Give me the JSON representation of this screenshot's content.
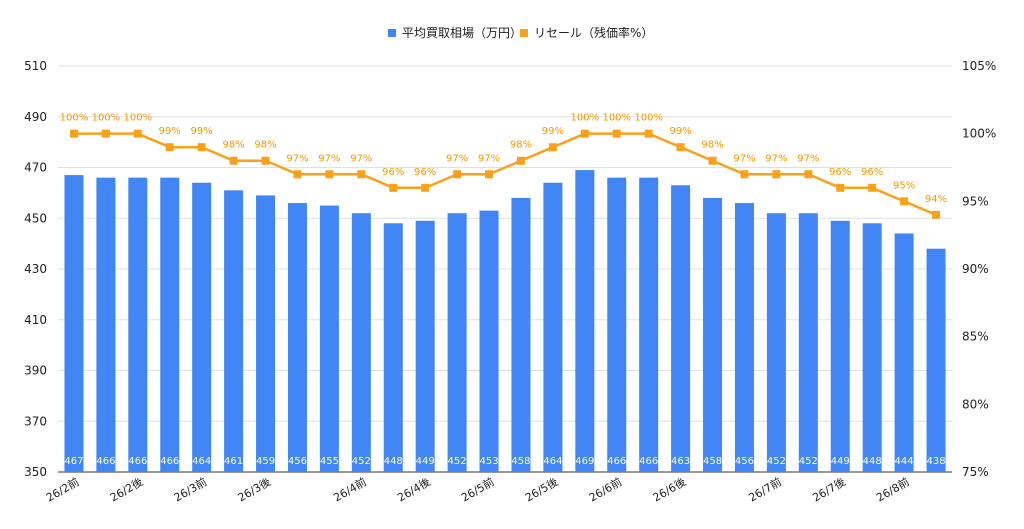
{
  "chart_data": {
    "type": "bar",
    "title": "",
    "legend": {
      "position": "top-center",
      "items": [
        {
          "label": "平均買取相場（万円）",
          "color": "#4285f4",
          "marker": "square"
        },
        {
          "label": "リセール（残価率%）",
          "color": "#f9a11b",
          "marker": "square"
        }
      ]
    },
    "categories": [
      "26/2前",
      "",
      "26/2後",
      "",
      "26/3前",
      "",
      "26/3後",
      "",
      "",
      "26/4前",
      "",
      "26/4後",
      "",
      "26/5前",
      "",
      "26/5後",
      "",
      "26/6前",
      "",
      "26/6後",
      "",
      "",
      "26/7前",
      "",
      "26/7後",
      "",
      "26/8前",
      ""
    ],
    "series": [
      {
        "name": "平均買取相場（万円）",
        "type": "bar",
        "axis": "left",
        "color": "#4285f4",
        "values": [
          467,
          466,
          466,
          466,
          464,
          461,
          459,
          456,
          455,
          452,
          448,
          449,
          452,
          453,
          458,
          464,
          469,
          466,
          466,
          463,
          458,
          456,
          452,
          452,
          449,
          448,
          444,
          438
        ],
        "labels": [
          "467",
          "466",
          "466",
          "466",
          "464",
          "461",
          "459",
          "456",
          "455",
          "452",
          "448",
          "449",
          "452",
          "453",
          "458",
          "464",
          "469",
          "466",
          "466",
          "463",
          "458",
          "456",
          "452",
          "452",
          "449",
          "448",
          "444",
          "438"
        ]
      },
      {
        "name": "リセール（残価率%）",
        "type": "line",
        "axis": "right",
        "color": "#f9a11b",
        "values": [
          100,
          100,
          100,
          99,
          99,
          98,
          98,
          97,
          97,
          97,
          96,
          96,
          97,
          97,
          98,
          99,
          100,
          100,
          100,
          99,
          98,
          97,
          97,
          97,
          96,
          96,
          95,
          94
        ],
        "labels": [
          "100%",
          "100%",
          "100%",
          "99%",
          "99%",
          "98%",
          "98%",
          "97%",
          "97%",
          "97%",
          "96%",
          "96%",
          "97%",
          "97%",
          "98%",
          "99%",
          "100%",
          "100%",
          "100%",
          "99%",
          "98%",
          "97%",
          "97%",
          "97%",
          "96%",
          "96%",
          "95%",
          "94%"
        ]
      }
    ],
    "y_left": {
      "min": 350,
      "max": 510,
      "ticks": [
        350,
        370,
        390,
        410,
        430,
        450,
        470,
        490,
        510
      ],
      "tick_labels": [
        "350",
        "370",
        "390",
        "410",
        "430",
        "450",
        "470",
        "490",
        "510"
      ]
    },
    "y_right": {
      "min": 75,
      "max": 105,
      "ticks": [
        75,
        80,
        85,
        90,
        95,
        100,
        105
      ],
      "tick_labels": [
        "75%",
        "80%",
        "85%",
        "90%",
        "95%",
        "100%",
        "105%"
      ]
    },
    "grid": true,
    "xlabel": "",
    "ylabel": "",
    "colors": {
      "bar": "#4285f4",
      "line": "#f9a11b",
      "grid": "#e0e0e0",
      "axis": "#333333"
    }
  }
}
